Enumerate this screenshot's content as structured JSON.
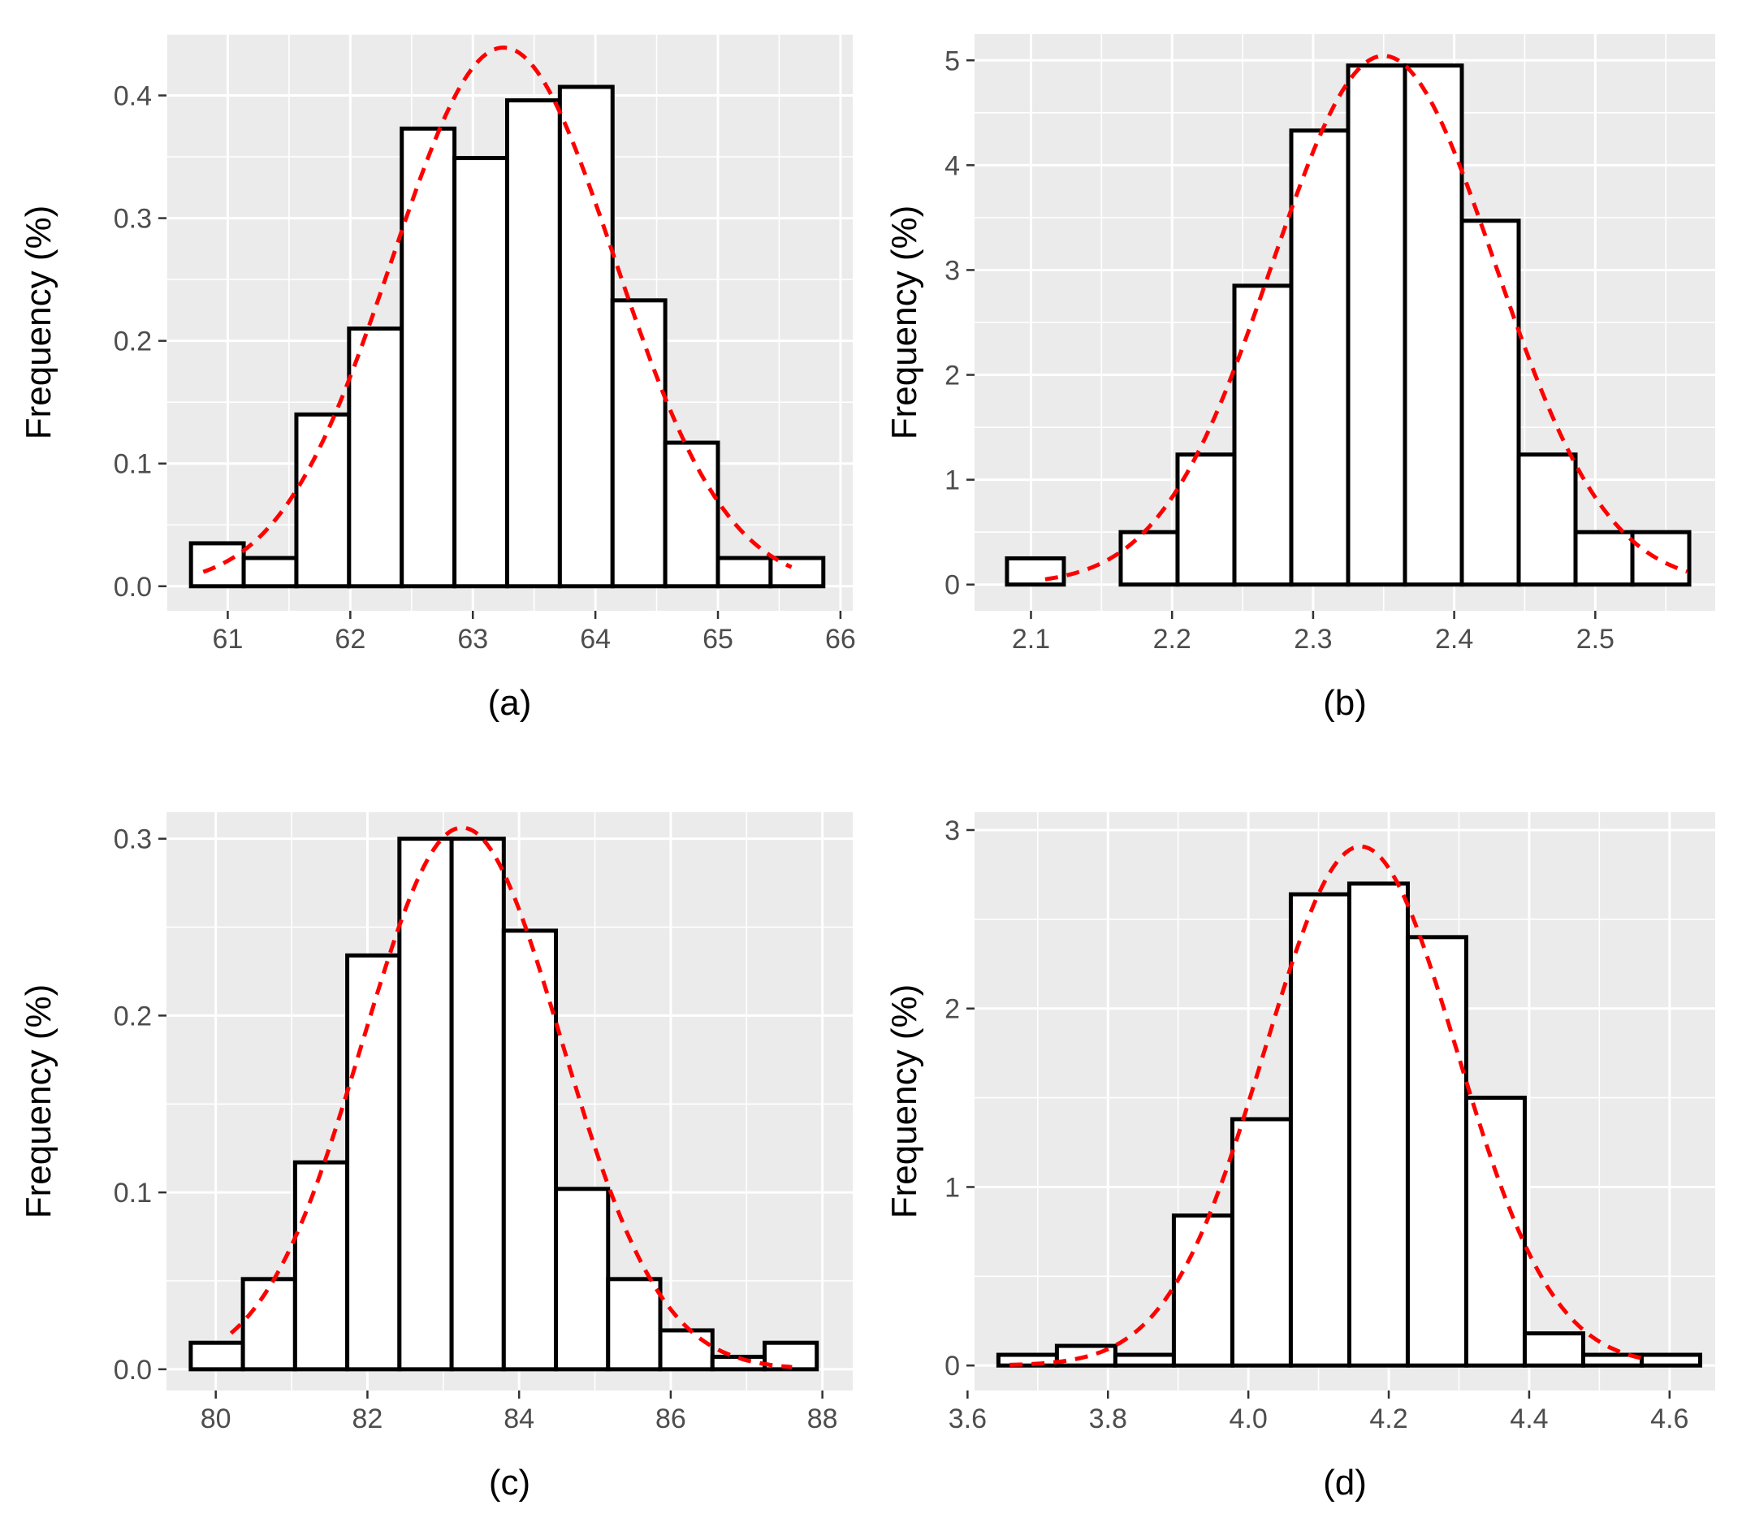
{
  "figure": {
    "colors": {
      "panel": "#ebebeb",
      "grid": "#ffffff",
      "bar_fill": "#ffffff",
      "bar_stroke": "#000000",
      "density": "#ff0000"
    }
  },
  "chart_data": [
    {
      "id": "a",
      "type": "bar",
      "overlay": "normal density curve (dashed red)",
      "ylabel": "Frequency (%)",
      "xlabel": "(a)",
      "xlim": [
        60.5,
        66.1
      ],
      "ylim": [
        -0.02,
        0.45
      ],
      "x_ticks": [
        61,
        62,
        63,
        64,
        65,
        66
      ],
      "x_tick_labels": [
        "61",
        "62",
        "63",
        "64",
        "65",
        "66"
      ],
      "y_ticks": [
        0,
        0.1,
        0.2,
        0.3,
        0.4
      ],
      "y_tick_labels": [
        "0.0",
        "0.1",
        "0.2",
        "0.3",
        "0.4"
      ],
      "bin_start": 60.7,
      "bin_width": 0.43,
      "values": [
        0.035,
        0.023,
        0.14,
        0.21,
        0.373,
        0.349,
        0.396,
        0.407,
        0.233,
        0.117,
        0.023,
        0.023
      ],
      "curve": {
        "mean": 63.25,
        "sd": 0.91,
        "x_range": [
          60.8,
          65.6
        ]
      }
    },
    {
      "id": "b",
      "type": "bar",
      "overlay": "normal density curve (dashed red)",
      "ylabel": "Frequency (%)",
      "xlabel": "(b)",
      "xlim": [
        2.06,
        2.585
      ],
      "ylim": [
        -0.25,
        5.25
      ],
      "x_ticks": [
        2.1,
        2.2,
        2.3,
        2.4,
        2.5
      ],
      "x_tick_labels": [
        "2.1",
        "2.2",
        "2.3",
        "2.4",
        "2.5"
      ],
      "y_ticks": [
        0,
        1,
        2,
        3,
        4,
        5
      ],
      "y_tick_labels": [
        "0",
        "1",
        "2",
        "3",
        "4",
        "5"
      ],
      "bin_start": 2.083,
      "bin_width": 0.0403,
      "values": [
        0.25,
        0.0,
        0.5,
        1.24,
        2.85,
        4.33,
        4.95,
        4.95,
        3.47,
        1.24,
        0.5,
        0.5
      ],
      "curve": {
        "mean": 2.35,
        "sd": 0.079,
        "x_range": [
          2.11,
          2.565
        ]
      }
    },
    {
      "id": "c",
      "type": "bar",
      "overlay": "normal density curve (dashed red)",
      "ylabel": "Frequency (%)",
      "xlabel": "(c)",
      "xlim": [
        79.35,
        88.4
      ],
      "ylim": [
        -0.012,
        0.315
      ],
      "x_ticks": [
        80,
        82,
        84,
        86,
        88
      ],
      "x_tick_labels": [
        "80",
        "82",
        "84",
        "86",
        "88"
      ],
      "y_ticks": [
        0,
        0.1,
        0.2,
        0.3
      ],
      "y_tick_labels": [
        "0.0",
        "0.1",
        "0.2",
        "0.3"
      ],
      "bin_start": 79.67,
      "bin_width": 0.688,
      "values": [
        0.015,
        0.051,
        0.117,
        0.234,
        0.3,
        0.3,
        0.248,
        0.102,
        0.051,
        0.022,
        0.007,
        0.015
      ],
      "curve": {
        "mean": 83.25,
        "sd": 1.31,
        "x_range": [
          80.2,
          87.6
        ]
      }
    },
    {
      "id": "d",
      "type": "bar",
      "overlay": "normal density curve (dashed red)",
      "ylabel": "Frequency (%)",
      "xlabel": "(d)",
      "xlim": [
        3.61,
        4.665
      ],
      "ylim": [
        -0.14,
        3.1
      ],
      "x_ticks": [
        3.6,
        3.8,
        4.0,
        4.2,
        4.4,
        4.6
      ],
      "x_tick_labels": [
        "3.6",
        "3.8",
        "4.0",
        "4.2",
        "4.4",
        "4.6"
      ],
      "y_ticks": [
        0,
        1,
        2,
        3
      ],
      "y_tick_labels": [
        "0",
        "1",
        "2",
        "3"
      ],
      "bin_start": 3.644,
      "bin_width": 0.0833,
      "values": [
        0.06,
        0.11,
        0.06,
        0.84,
        1.38,
        2.64,
        2.7,
        2.4,
        1.5,
        0.18,
        0.06,
        0.06
      ],
      "curve": {
        "mean": 4.16,
        "sd": 0.137,
        "x_range": [
          3.66,
          4.56
        ]
      }
    }
  ]
}
